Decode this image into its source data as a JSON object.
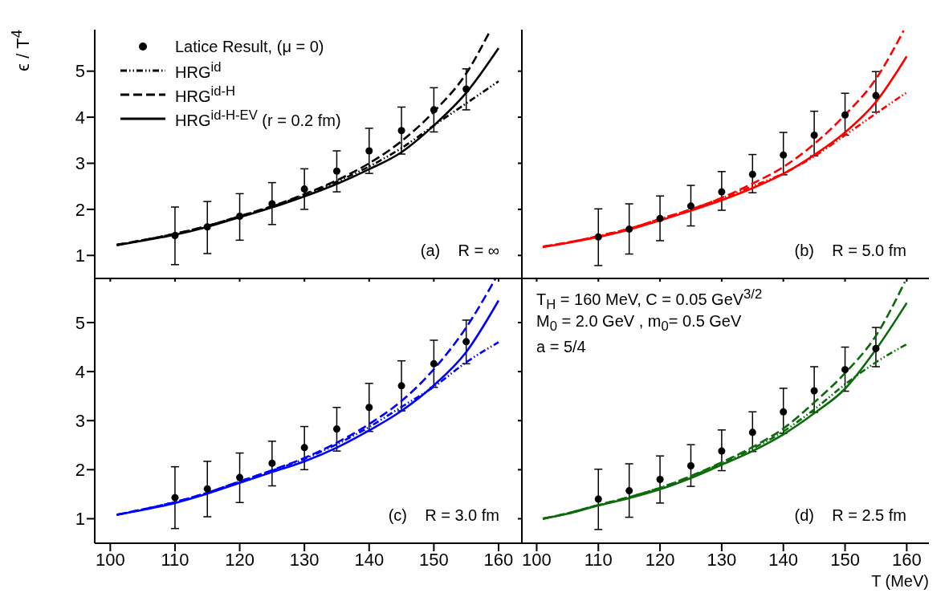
{
  "chart_data": [
    {
      "type": "line",
      "ylabel": "ϵ / T$^{4}$",
      "xlim": [
        97.6,
        163.6
      ],
      "ylim": [
        0.5,
        5.9
      ],
      "xticks": [
        100,
        110,
        120,
        130,
        140,
        150,
        160
      ],
      "yticks": [
        1,
        2,
        3,
        4,
        5
      ],
      "tick_labels": "y",
      "legend": "top left",
      "marker": "none",
      "annotations": [
        "(a)    R = ∞"
      ],
      "series": [
        {
          "name": "Latice Result, (μ = 0)",
          "type": "scatter",
          "marker": "circle",
          "color": "#000000",
          "x": [
            110,
            115,
            120,
            125,
            130,
            135,
            140,
            145,
            150,
            155
          ],
          "values": [
            1.43,
            1.62,
            1.85,
            2.12,
            2.44,
            2.83,
            3.27,
            3.71,
            4.16,
            4.61
          ],
          "errors": [
            [
              0.8,
              2.05
            ],
            [
              1.04,
              2.17
            ],
            [
              1.33,
              2.34
            ],
            [
              1.67,
              2.58
            ],
            [
              2.0,
              2.88
            ],
            [
              2.38,
              3.27
            ],
            [
              2.78,
              3.76
            ],
            [
              3.2,
              4.22
            ],
            [
              3.68,
              4.64
            ],
            [
              4.16,
              5.05
            ]
          ]
        },
        {
          "name": "HRG$^{id}$",
          "line_style": "dotted",
          "color": "#000000",
          "x": [
            101,
            105,
            110,
            115,
            120,
            125,
            130,
            135,
            140,
            145,
            150,
            155,
            160
          ],
          "values": [
            1.23,
            1.33,
            1.47,
            1.64,
            1.85,
            2.06,
            2.31,
            2.6,
            2.93,
            3.33,
            3.82,
            4.3,
            4.78
          ]
        },
        {
          "name": "HRG$^{id-H}$",
          "line_style": "dashed",
          "color": "#000000",
          "x": [
            101,
            105,
            110,
            115,
            120,
            125,
            130,
            135,
            140,
            145,
            150,
            155,
            158.6
          ],
          "values": [
            1.23,
            1.33,
            1.47,
            1.64,
            1.85,
            2.07,
            2.33,
            2.63,
            3.0,
            3.48,
            4.12,
            4.95,
            5.85
          ]
        },
        {
          "name": "HRG$^{id-H-EV}$  (r = 0.2 fm)",
          "line_style": "solid",
          "color": "#000000",
          "x": [
            101,
            105,
            110,
            115,
            120,
            125,
            130,
            135,
            140,
            145,
            150,
            155,
            160
          ],
          "values": [
            1.22,
            1.32,
            1.45,
            1.62,
            1.83,
            2.04,
            2.28,
            2.55,
            2.87,
            3.24,
            3.82,
            4.53,
            5.5
          ]
        }
      ]
    },
    {
      "type": "line",
      "xlim": [
        97.6,
        163.6
      ],
      "ylim": [
        0.5,
        5.9
      ],
      "xticks": [
        100,
        110,
        120,
        130,
        140,
        150,
        160
      ],
      "yticks": [
        1,
        2,
        3,
        4,
        5
      ],
      "tick_labels": false,
      "marker": "none",
      "annotations": [
        "(b)    R = 5.0 fm"
      ],
      "series": [
        {
          "type": "scatter",
          "marker": "circle",
          "color": "#000000",
          "x": [
            110,
            115,
            120,
            125,
            130,
            135,
            140,
            145,
            150,
            155
          ],
          "values": [
            1.4,
            1.57,
            1.8,
            2.07,
            2.38,
            2.76,
            3.18,
            3.61,
            4.05,
            4.47
          ],
          "errors": [
            [
              0.78,
              2.01
            ],
            [
              1.03,
              2.12
            ],
            [
              1.32,
              2.29
            ],
            [
              1.64,
              2.52
            ],
            [
              1.98,
              2.82
            ],
            [
              2.36,
              3.19
            ],
            [
              2.75,
              3.67
            ],
            [
              3.16,
              4.13
            ],
            [
              3.61,
              4.52
            ],
            [
              4.11,
              4.99
            ]
          ]
        },
        {
          "line_style": "dotted",
          "color": "#ff0000",
          "x": [
            101,
            105,
            110,
            115,
            120,
            125,
            130,
            135,
            140,
            145,
            150,
            155,
            160
          ],
          "values": [
            1.19,
            1.28,
            1.42,
            1.58,
            1.79,
            2.0,
            2.24,
            2.5,
            2.78,
            3.15,
            3.61,
            4.08,
            4.54
          ]
        },
        {
          "line_style": "dashed",
          "color": "#ff0000",
          "x": [
            101,
            105,
            110,
            115,
            120,
            125,
            130,
            135,
            140,
            145,
            150,
            155,
            159.5
          ],
          "values": [
            1.19,
            1.28,
            1.42,
            1.58,
            1.79,
            2.0,
            2.25,
            2.56,
            2.92,
            3.42,
            4.05,
            4.83,
            5.88
          ]
        },
        {
          "line_style": "solid",
          "color": "#ff0000",
          "x": [
            101,
            105,
            110,
            115,
            120,
            125,
            130,
            135,
            140,
            145,
            150,
            155,
            160
          ],
          "values": [
            1.18,
            1.27,
            1.4,
            1.56,
            1.76,
            1.97,
            2.2,
            2.46,
            2.77,
            3.18,
            3.67,
            4.33,
            5.32
          ]
        }
      ]
    },
    {
      "type": "line",
      "xlim": [
        97.6,
        163.6
      ],
      "ylim": [
        0.5,
        5.9
      ],
      "xticks": [
        100,
        110,
        120,
        130,
        140,
        150,
        160
      ],
      "yticks": [
        1,
        2,
        3,
        4,
        5
      ],
      "marker": "none",
      "annotations": [
        "(c)    R = 3.0 fm"
      ],
      "series": [
        {
          "type": "scatter",
          "marker": "circle",
          "color": "#000000",
          "x": [
            110,
            115,
            120,
            125,
            130,
            135,
            140,
            145,
            150,
            155
          ],
          "values": [
            1.43,
            1.61,
            1.84,
            2.13,
            2.45,
            2.83,
            3.27,
            3.71,
            4.16,
            4.61
          ],
          "errors": [
            [
              0.8,
              2.06
            ],
            [
              1.04,
              2.17
            ],
            [
              1.33,
              2.34
            ],
            [
              1.67,
              2.58
            ],
            [
              2.0,
              2.88
            ],
            [
              2.38,
              3.27
            ],
            [
              2.78,
              3.76
            ],
            [
              3.2,
              4.22
            ],
            [
              3.68,
              4.64
            ],
            [
              4.16,
              5.05
            ]
          ]
        },
        {
          "line_style": "dotted",
          "color": "#0000ff",
          "x": [
            101,
            105,
            110,
            115,
            120,
            125,
            130,
            135,
            140,
            145,
            150,
            155,
            160
          ],
          "values": [
            1.08,
            1.19,
            1.34,
            1.53,
            1.76,
            1.98,
            2.22,
            2.52,
            2.87,
            3.28,
            3.69,
            4.19,
            4.6
          ]
        },
        {
          "line_style": "dashed",
          "color": "#0000ff",
          "x": [
            101,
            105,
            110,
            115,
            120,
            125,
            130,
            135,
            140,
            145,
            150,
            155,
            159.5
          ],
          "values": [
            1.08,
            1.19,
            1.34,
            1.53,
            1.76,
            1.99,
            2.24,
            2.55,
            2.93,
            3.4,
            4.05,
            4.9,
            5.89
          ]
        },
        {
          "line_style": "solid",
          "color": "#0000ff",
          "x": [
            101,
            105,
            110,
            115,
            120,
            125,
            130,
            135,
            140,
            145,
            150,
            155,
            160
          ],
          "values": [
            1.08,
            1.18,
            1.32,
            1.51,
            1.73,
            1.95,
            2.17,
            2.45,
            2.8,
            3.2,
            3.72,
            4.4,
            5.45
          ]
        }
      ]
    },
    {
      "type": "line",
      "xlabel": "T (MeV)",
      "xlim": [
        97.6,
        163.6
      ],
      "ylim": [
        0.5,
        5.9
      ],
      "xticks": [
        100,
        110,
        120,
        130,
        140,
        150,
        160
      ],
      "yticks": [
        1,
        2,
        3,
        4,
        5
      ],
      "tick_labels": "x",
      "marker": "none",
      "annotations": [
        "T$_{H}$ = 160 MeV, C = 0.05 GeV$^{3/2}$",
        "M$_{0}$ = 2.0 GeV , m$_{0}$= 0.5 GeV",
        "a = 5/4",
        "(d)    R = 2.5 fm"
      ],
      "series": [
        {
          "type": "scatter",
          "marker": "circle",
          "color": "#000000",
          "x": [
            110,
            115,
            120,
            125,
            130,
            135,
            140,
            145,
            150,
            155
          ],
          "values": [
            1.4,
            1.57,
            1.8,
            2.08,
            2.38,
            2.76,
            3.18,
            3.61,
            4.04,
            4.47
          ],
          "errors": [
            [
              0.78,
              2.01
            ],
            [
              1.03,
              2.12
            ],
            [
              1.32,
              2.28
            ],
            [
              1.66,
              2.51
            ],
            [
              1.98,
              2.81
            ],
            [
              2.37,
              3.18
            ],
            [
              2.74,
              3.66
            ],
            [
              3.17,
              4.1
            ],
            [
              3.6,
              4.5
            ],
            [
              4.1,
              4.9
            ]
          ]
        },
        {
          "line_style": "dotted",
          "color": "#0b6b0b",
          "x": [
            101,
            105,
            110,
            115,
            120,
            125,
            130,
            135,
            140,
            145,
            150,
            155,
            160
          ],
          "values": [
            1.0,
            1.11,
            1.28,
            1.44,
            1.63,
            1.86,
            2.13,
            2.43,
            2.78,
            3.23,
            3.74,
            4.19,
            4.56
          ]
        },
        {
          "line_style": "dashed",
          "color": "#0b6b0b",
          "x": [
            101,
            105,
            110,
            115,
            120,
            125,
            130,
            135,
            140,
            145,
            150,
            155,
            159.7
          ],
          "values": [
            1.0,
            1.11,
            1.28,
            1.44,
            1.63,
            1.87,
            2.15,
            2.46,
            2.84,
            3.37,
            3.97,
            4.73,
            5.83
          ]
        },
        {
          "line_style": "solid",
          "color": "#0b6b0b",
          "x": [
            101,
            105,
            110,
            115,
            120,
            125,
            130,
            135,
            140,
            145,
            150,
            155,
            160
          ],
          "values": [
            1.0,
            1.1,
            1.27,
            1.42,
            1.6,
            1.83,
            2.1,
            2.38,
            2.72,
            3.15,
            3.65,
            4.45,
            5.4
          ]
        }
      ]
    }
  ]
}
